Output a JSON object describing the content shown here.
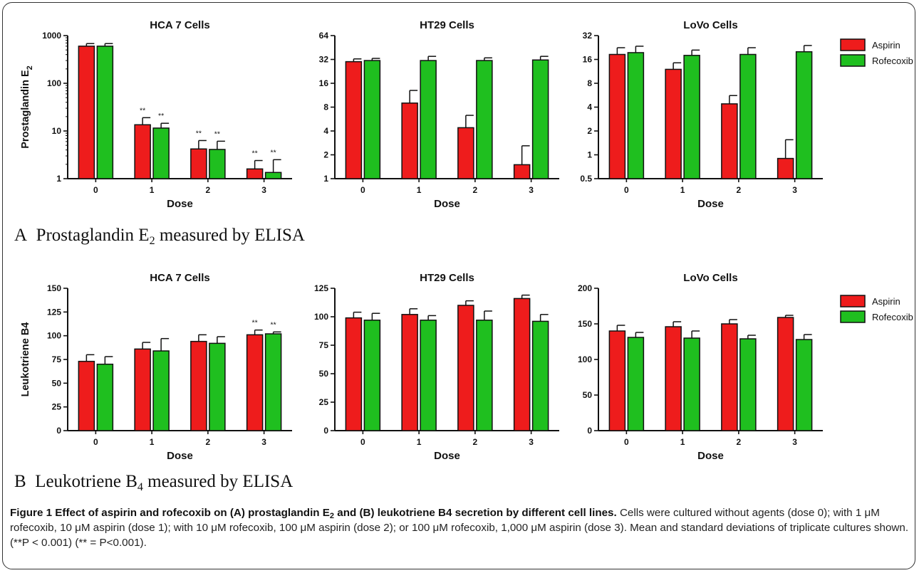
{
  "figure": {
    "panel_a_letter": "A",
    "panel_a_text": "Prostaglandin E",
    "panel_a_sub": "2",
    "panel_a_suffix": " measured by ELISA",
    "panel_b_letter": "B",
    "panel_b_text": "Leukotriene B",
    "panel_b_sub": "4",
    "panel_b_suffix": " measured by ELISA"
  },
  "caption": {
    "title_1": "Figure 1 Effect of aspirin and rofecoxib on (A) prostaglandin E",
    "title_sub": "2",
    "title_2": " and (B) leukotriene B4 secretion by different cell lines.",
    "body": " Cells were cultured without agents (dose 0); with 1 μM rofecoxib, 10 μM aspirin (dose 1); with 10 μM rofecoxib, 100 μM aspirin (dose 2); or 100 μM rofecoxib, 1,000 μM aspirin (dose 3). Mean and standard deviations of triplicate cultures shown. (**P < 0.001) (** = P<0.001)."
  },
  "colors": {
    "aspirin": "#ee1c1c",
    "rofecoxib": "#1fbf1f",
    "axis": "#111111"
  },
  "legend_a": [
    {
      "label": "Aspirin",
      "color": "#ee1c1c"
    },
    {
      "label": "Rofecoxib",
      "color": "#1fbf1f"
    }
  ],
  "legend_b": [
    {
      "label": "Aspirin",
      "color": "#ee1c1c"
    },
    {
      "label": "Rofecoxib",
      "color": "#1fbf1f"
    }
  ],
  "chart_data": [
    {
      "type": "bar",
      "title": "HCA 7 Cells",
      "xlabel": "Dose",
      "ylabel": "Prostaglandin E2",
      "ylabel_main": "Prostaglandin E",
      "ylabel_sub": "2",
      "scale": "log10",
      "ylim": [
        1,
        1000
      ],
      "yticks": [
        1,
        10,
        100,
        1000
      ],
      "ytick_labels": [
        "1",
        "10",
        "100",
        "1000"
      ],
      "categories": [
        "0",
        "1",
        "2",
        "3"
      ],
      "series": [
        {
          "name": "Aspirin",
          "values": [
            600,
            13.5,
            4.2,
            1.6
          ],
          "errors": [
            680,
            19,
            6.3,
            2.4
          ],
          "annotations": [
            "",
            "**",
            "**",
            "**"
          ]
        },
        {
          "name": "Rofecoxib",
          "values": [
            600,
            11.5,
            4.1,
            1.35
          ],
          "errors": [
            680,
            14.5,
            6.1,
            2.5
          ],
          "annotations": [
            "",
            "**",
            "**",
            "**"
          ]
        }
      ]
    },
    {
      "type": "bar",
      "title": "HT29 Cells",
      "xlabel": "Dose",
      "ylabel": "",
      "scale": "log2",
      "ylim": [
        1,
        64
      ],
      "yticks": [
        1,
        2,
        4,
        8,
        16,
        32,
        64
      ],
      "ytick_labels": [
        "1",
        "2",
        "4",
        "8",
        "16",
        "32",
        "64"
      ],
      "categories": [
        "0",
        "1",
        "2",
        "3"
      ],
      "series": [
        {
          "name": "Aspirin",
          "values": [
            30,
            9,
            4.4,
            1.5
          ],
          "errors": [
            32.5,
            13,
            6.3,
            2.6
          ],
          "annotations": [
            "",
            "",
            "",
            ""
          ]
        },
        {
          "name": "Rofecoxib",
          "values": [
            31,
            31,
            31,
            31.5
          ],
          "errors": [
            33,
            35,
            33.5,
            35
          ],
          "annotations": [
            "",
            "",
            "",
            ""
          ]
        }
      ]
    },
    {
      "type": "bar",
      "title": "LoVo Cells",
      "xlabel": "Dose",
      "ylabel": "",
      "scale": "log2",
      "ylim": [
        0.5,
        32
      ],
      "yticks": [
        0.5,
        1,
        2,
        4,
        8,
        16,
        32
      ],
      "ytick_labels": [
        "0.5",
        "1",
        "2",
        "4",
        "8",
        "16",
        "32"
      ],
      "categories": [
        "0",
        "1",
        "2",
        "3"
      ],
      "series": [
        {
          "name": "Aspirin",
          "values": [
            18.5,
            12,
            4.4,
            0.9
          ],
          "errors": [
            22.5,
            14.5,
            5.6,
            1.55
          ],
          "annotations": [
            "",
            "",
            "",
            ""
          ]
        },
        {
          "name": "Rofecoxib",
          "values": [
            19.5,
            18,
            18.5,
            20
          ],
          "errors": [
            23.5,
            21,
            22.5,
            24
          ],
          "annotations": [
            "",
            "",
            "",
            ""
          ]
        }
      ]
    },
    {
      "type": "bar",
      "title": "HCA 7 Cells",
      "xlabel": "Dose",
      "ylabel": "Leukotriene B4",
      "ylabel_main": "Leukotriene B4",
      "ylabel_sub": "",
      "scale": "linear",
      "ylim": [
        0,
        150
      ],
      "yticks": [
        0,
        25,
        50,
        75,
        100,
        125,
        150
      ],
      "ytick_labels": [
        "0",
        "25",
        "50",
        "75",
        "100",
        "125",
        "150"
      ],
      "categories": [
        "0",
        "1",
        "2",
        "3"
      ],
      "series": [
        {
          "name": "Aspirin",
          "values": [
            73,
            86,
            94,
            101
          ],
          "errors": [
            80,
            93,
            101,
            106
          ],
          "annotations": [
            "",
            "",
            "",
            "**"
          ]
        },
        {
          "name": "Rofecoxib",
          "values": [
            70,
            84,
            92,
            102
          ],
          "errors": [
            78,
            97,
            99,
            104
          ],
          "annotations": [
            "",
            "",
            "",
            "**"
          ]
        }
      ]
    },
    {
      "type": "bar",
      "title": "HT29 Cells",
      "xlabel": "Dose",
      "ylabel": "",
      "scale": "linear",
      "ylim": [
        0,
        125
      ],
      "yticks": [
        0,
        25,
        50,
        75,
        100,
        125
      ],
      "ytick_labels": [
        "0",
        "25",
        "50",
        "75",
        "100",
        "125"
      ],
      "categories": [
        "0",
        "1",
        "2",
        "3"
      ],
      "series": [
        {
          "name": "Aspirin",
          "values": [
            99,
            102,
            110,
            116
          ],
          "errors": [
            104,
            107,
            114,
            119
          ],
          "annotations": [
            "",
            "",
            "",
            ""
          ]
        },
        {
          "name": "Rofecoxib",
          "values": [
            97,
            97,
            97,
            96
          ],
          "errors": [
            103,
            101,
            105,
            102
          ],
          "annotations": [
            "",
            "",
            "",
            ""
          ]
        }
      ]
    },
    {
      "type": "bar",
      "title": "LoVo Cells",
      "xlabel": "Dose",
      "ylabel": "",
      "scale": "linear",
      "ylim": [
        0,
        200
      ],
      "yticks": [
        0,
        50,
        100,
        150,
        200
      ],
      "ytick_labels": [
        "0",
        "50",
        "100",
        "150",
        "200"
      ],
      "categories": [
        "0",
        "1",
        "2",
        "3"
      ],
      "series": [
        {
          "name": "Aspirin",
          "values": [
            140,
            146,
            150,
            159
          ],
          "errors": [
            148,
            153,
            156,
            162
          ],
          "annotations": [
            "",
            "",
            "",
            ""
          ]
        },
        {
          "name": "Rofecoxib",
          "values": [
            131,
            130,
            129,
            128
          ],
          "errors": [
            138,
            140,
            134,
            135
          ],
          "annotations": [
            "",
            "",
            "",
            ""
          ]
        }
      ]
    }
  ]
}
